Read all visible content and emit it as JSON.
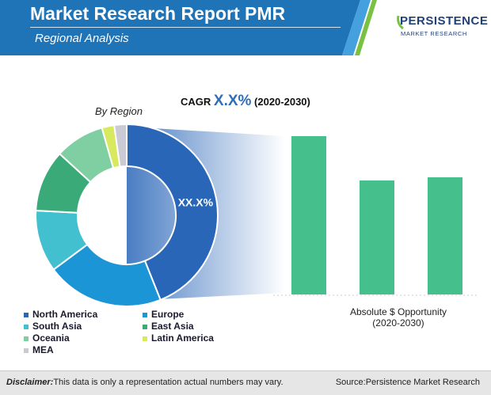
{
  "header": {
    "title": "Market Research Report PMR",
    "subtitle": "Regional Analysis",
    "logo_main": "PERSISTENCE",
    "logo_sub": "MARKET RESEARCH",
    "colors": {
      "primary": "#1f73b7",
      "light": "#45a1de",
      "accent": "#7ac143"
    }
  },
  "cagr": {
    "prefix": "CAGR ",
    "value": "X.X%",
    "period": " (2020-2030)"
  },
  "chart_data": [
    {
      "type": "pie",
      "title": "By Region",
      "center_label": "XX.X%",
      "categories": [
        "North America",
        "Europe",
        "South Asia",
        "East Asia",
        "Oceania",
        "Latin America",
        "MEA"
      ],
      "values": [
        40.0,
        19.0,
        10.0,
        10.0,
        8.0,
        2.0,
        2.0
      ],
      "colors": [
        "#2a66b8",
        "#1b95d6",
        "#43c0cf",
        "#3aaa78",
        "#80cfa2",
        "#d9e95f",
        "#c9cad3"
      ],
      "legend_position": "bottom"
    },
    {
      "type": "bar",
      "xlabel": "Absolute $ Opportunity\n(2020-2030)",
      "categories": [
        "",
        "",
        ""
      ],
      "values": [
        100,
        72,
        74
      ],
      "ylim": [
        0,
        100
      ],
      "color": "#45c08d"
    }
  ],
  "footer": {
    "disclaimer_label": "Disclaimer:",
    "disclaimer_text": "This data is only a representation actual numbers may vary.",
    "source": "Source:Persistence Market Research"
  }
}
